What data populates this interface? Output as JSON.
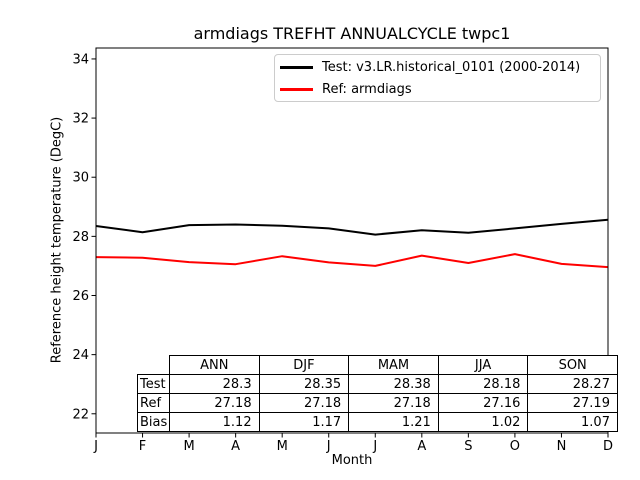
{
  "chart_data": {
    "type": "line",
    "title": "armdiags TREFHT ANNUALCYCLE twpc1",
    "xlabel": "Month",
    "ylabel": "Reference height temperature (DegC)",
    "x": [
      "J",
      "F",
      "M",
      "A",
      "M",
      "J",
      "J",
      "A",
      "S",
      "O",
      "N",
      "D"
    ],
    "series": [
      {
        "name": "Test: v3.LR.historical_0101 (2000-2014)",
        "color": "#000000",
        "values": [
          28.35,
          28.14,
          28.38,
          28.4,
          28.36,
          28.27,
          28.06,
          28.21,
          28.12,
          28.27,
          28.42,
          28.56
        ]
      },
      {
        "name": "Ref: armdiags",
        "color": "#ff0000",
        "values": [
          27.3,
          27.28,
          27.13,
          27.06,
          27.33,
          27.12,
          27.0,
          27.35,
          27.1,
          27.4,
          27.07,
          26.96
        ]
      }
    ],
    "yticks": [
      22,
      24,
      26,
      28,
      30,
      32,
      34
    ],
    "ylim": [
      21.35,
      34.37
    ],
    "legend_position": "upper right",
    "grid": false
  },
  "table": {
    "col_headers": [
      "ANN",
      "DJF",
      "MAM",
      "JJA",
      "SON"
    ],
    "rows": [
      {
        "label": "Test",
        "values": [
          "28.3",
          "28.35",
          "28.38",
          "28.18",
          "28.27"
        ]
      },
      {
        "label": "Ref",
        "values": [
          "27.18",
          "27.18",
          "27.18",
          "27.16",
          "27.19"
        ]
      },
      {
        "label": "Bias",
        "values": [
          "1.12",
          "1.17",
          "1.21",
          "1.02",
          "1.07"
        ]
      }
    ]
  }
}
